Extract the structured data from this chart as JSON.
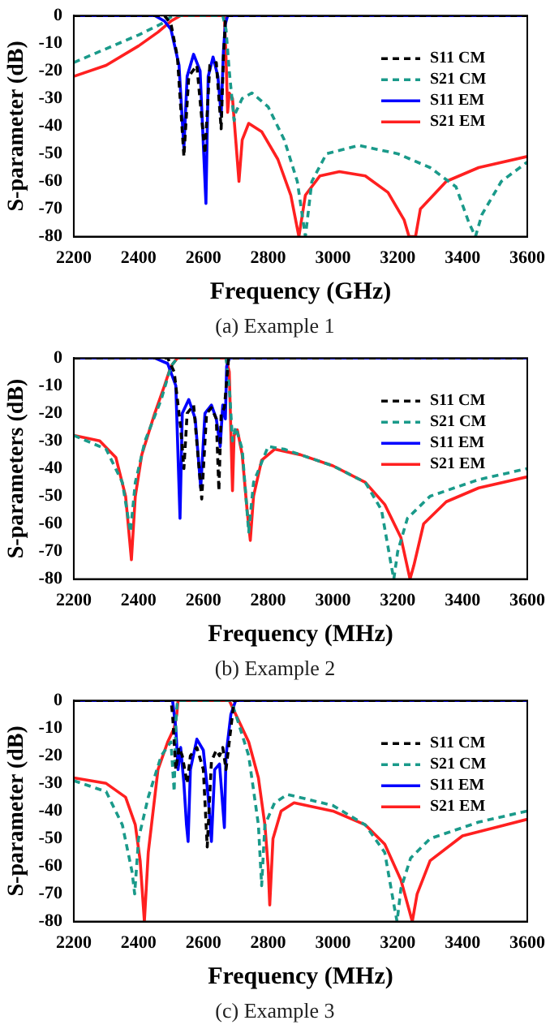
{
  "chart_data": [
    {
      "type": "line",
      "xlabel": "Frequency (GHz)",
      "ylabel": "S-parameter (dB)",
      "annotations": [
        "(a)  Example  1"
      ],
      "xlim": [
        2200,
        3600
      ],
      "ylim": [
        -80,
        0
      ],
      "xticks": [
        2200,
        2400,
        2600,
        2800,
        3000,
        3200,
        3400,
        3600
      ],
      "yticks": [
        -80,
        -70,
        -60,
        -50,
        -40,
        -30,
        -20,
        -10,
        0
      ],
      "legend": "top right",
      "grid": false,
      "marker": "none",
      "series": [
        {
          "name": "S11 CM",
          "color": "#000000",
          "line_style": "dashed",
          "x": [
            2200,
            2480,
            2500,
            2520,
            2540,
            2555,
            2580,
            2605,
            2620,
            2640,
            2655,
            2662,
            2668,
            2672,
            3600
          ],
          "values": [
            0,
            0,
            -3,
            -15,
            -51,
            -22,
            -18,
            -50,
            -18,
            -17,
            -41,
            -15,
            -2,
            0,
            0
          ]
        },
        {
          "name": "S21 CM",
          "color": "#1a9a8a",
          "line_style": "dashed",
          "x": [
            2200,
            2300,
            2400,
            2470,
            2500,
            2520,
            2660,
            2670,
            2680,
            2695,
            2700,
            2720,
            2750,
            2800,
            2850,
            2890,
            2915,
            2935,
            2980,
            3080,
            3200,
            3300,
            3380,
            3420,
            3440,
            3460,
            3520,
            3600
          ],
          "values": [
            -17,
            -12,
            -7,
            -3,
            -0.5,
            0,
            0,
            -5,
            -20,
            -38,
            -35,
            -30,
            -28,
            -33,
            -45,
            -60,
            -80,
            -60,
            -50,
            -47,
            -50,
            -55,
            -62,
            -75,
            -80,
            -72,
            -60,
            -53
          ]
        },
        {
          "name": "S11 EM",
          "color": "#0000ff",
          "line_style": "solid",
          "x": [
            2200,
            2450,
            2480,
            2500,
            2525,
            2540,
            2550,
            2570,
            2590,
            2608,
            2615,
            2630,
            2645,
            2655,
            2662,
            2668,
            2675,
            3600
          ],
          "values": [
            0,
            0,
            -2,
            -5,
            -18,
            -48,
            -22,
            -14,
            -20,
            -68,
            -22,
            -15,
            -22,
            -36,
            -13,
            -3,
            0,
            0
          ]
        },
        {
          "name": "S21 EM",
          "color": "#ff2020",
          "line_style": "solid",
          "x": [
            2200,
            2300,
            2400,
            2460,
            2500,
            2530,
            2665,
            2670,
            2675,
            2680,
            2690,
            2700,
            2710,
            2720,
            2740,
            2780,
            2830,
            2870,
            2895,
            2915,
            2960,
            3020,
            3100,
            3170,
            3220,
            3235,
            3255,
            3270,
            3350,
            3450,
            3600
          ],
          "values": [
            -22,
            -18,
            -11,
            -6,
            -2,
            0,
            0,
            -15,
            -35,
            -28,
            -30,
            -45,
            -60,
            -45,
            -39,
            -42,
            -52,
            -65,
            -80,
            -65,
            -58,
            -56.5,
            -58,
            -64,
            -74,
            -80,
            -80,
            -70,
            -60,
            -55,
            -51
          ]
        }
      ]
    },
    {
      "type": "line",
      "xlabel": "Frequency (MHz)",
      "ylabel": "S-parameters (dB)",
      "annotations": [
        "(b)  Example  2"
      ],
      "xlim": [
        2200,
        3600
      ],
      "ylim": [
        -80,
        0
      ],
      "xticks": [
        2200,
        2400,
        2600,
        2800,
        3000,
        3200,
        3400,
        3600
      ],
      "yticks": [
        -80,
        -70,
        -60,
        -50,
        -40,
        -30,
        -20,
        -10,
        0
      ],
      "legend": "top right",
      "grid": false,
      "marker": "none",
      "series": [
        {
          "name": "S11 CM",
          "color": "#000000",
          "line_style": "dashed",
          "x": [
            2200,
            2490,
            2510,
            2530,
            2540,
            2550,
            2570,
            2595,
            2610,
            2625,
            2640,
            2648,
            2655,
            2665,
            2672,
            2678,
            3600
          ],
          "values": [
            0,
            0,
            -5,
            -25,
            -40,
            -20,
            -17,
            -51,
            -20,
            -18,
            -22,
            -48,
            -20,
            -18,
            -8,
            0,
            0
          ]
        },
        {
          "name": "S21 CM",
          "color": "#1a9a8a",
          "line_style": "dashed",
          "x": [
            2200,
            2300,
            2350,
            2375,
            2390,
            2420,
            2470,
            2500,
            2520,
            2670,
            2680,
            2690,
            2700,
            2720,
            2740,
            2755,
            2800,
            2850,
            3000,
            3100,
            3150,
            3180,
            3188,
            3200,
            3230,
            3300,
            3450,
            3600
          ],
          "values": [
            -28,
            -33,
            -45,
            -63,
            -45,
            -30,
            -15,
            -3,
            0,
            0,
            -10,
            -30,
            -25,
            -33,
            -63,
            -45,
            -32,
            -33,
            -39,
            -45,
            -55,
            -75,
            -80,
            -70,
            -58,
            -50,
            -44,
            -40
          ]
        },
        {
          "name": "S11 EM",
          "color": "#0000ff",
          "line_style": "solid",
          "x": [
            2200,
            2450,
            2490,
            2515,
            2528,
            2535,
            2555,
            2575,
            2592,
            2605,
            2625,
            2640,
            2652,
            2660,
            2668,
            2672,
            2680,
            3600
          ],
          "values": [
            0,
            0,
            -2,
            -10,
            -58,
            -20,
            -15,
            -22,
            -47,
            -20,
            -17,
            -22,
            -32,
            -17,
            -22,
            -3,
            0,
            0
          ]
        },
        {
          "name": "S21 EM",
          "color": "#ff2020",
          "line_style": "solid",
          "x": [
            2200,
            2280,
            2330,
            2360,
            2378,
            2390,
            2410,
            2450,
            2480,
            2500,
            2520,
            2670,
            2680,
            2690,
            2695,
            2705,
            2720,
            2735,
            2745,
            2755,
            2780,
            2820,
            2900,
            3000,
            3100,
            3160,
            3210,
            3238,
            3250,
            3280,
            3350,
            3450,
            3600
          ],
          "values": [
            -28,
            -30,
            -36,
            -50,
            -73,
            -50,
            -35,
            -20,
            -10,
            -3,
            0,
            0,
            -5,
            -48,
            -28,
            -26,
            -35,
            -55,
            -66,
            -50,
            -37,
            -33,
            -35,
            -39,
            -45,
            -53,
            -65,
            -80,
            -75,
            -60,
            -52,
            -47,
            -43
          ]
        }
      ]
    },
    {
      "type": "line",
      "xlabel": "Frequency (MHz)",
      "ylabel": "S-parameter (dB)",
      "annotations": [
        "(c)  Example  3"
      ],
      "xlim": [
        2200,
        3600
      ],
      "ylim": [
        -80,
        0
      ],
      "xticks": [
        2200,
        2400,
        2600,
        2800,
        3000,
        3200,
        3400,
        3600
      ],
      "yticks": [
        -80,
        -70,
        -60,
        -50,
        -40,
        -30,
        -20,
        -10,
        0
      ],
      "legend": "top right",
      "grid": false,
      "marker": "none",
      "series": [
        {
          "name": "S11 CM",
          "color": "#000000",
          "line_style": "dashed",
          "x": [
            2200,
            2500,
            2505,
            2515,
            2525,
            2535,
            2550,
            2560,
            2580,
            2600,
            2612,
            2625,
            2640,
            2650,
            2660,
            2670,
            2685,
            2695,
            3600
          ],
          "values": [
            0,
            0,
            -5,
            -25,
            -17,
            -20,
            -30,
            -20,
            -17,
            -25,
            -53,
            -22,
            -18,
            -20,
            -17,
            -25,
            -10,
            0,
            0
          ]
        },
        {
          "name": "S21 CM",
          "color": "#1a9a8a",
          "line_style": "dashed",
          "x": [
            2200,
            2300,
            2350,
            2380,
            2388,
            2400,
            2430,
            2470,
            2500,
            2510,
            2515,
            2520,
            2685,
            2700,
            2740,
            2770,
            2780,
            2790,
            2820,
            2860,
            3000,
            3100,
            3160,
            3190,
            3198,
            3210,
            3240,
            3300,
            3450,
            3600
          ],
          "values": [
            -29,
            -33,
            -45,
            -62,
            -70,
            -50,
            -35,
            -20,
            -15,
            -33,
            -8,
            0,
            0,
            -5,
            -20,
            -45,
            -67,
            -45,
            -37,
            -34,
            -38,
            -45,
            -55,
            -75,
            -80,
            -68,
            -57,
            -50,
            -44,
            -40
          ]
        },
        {
          "name": "S11 EM",
          "color": "#0000ff",
          "line_style": "solid",
          "x": [
            2200,
            2505,
            2515,
            2522,
            2530,
            2540,
            2548,
            2553,
            2560,
            2580,
            2600,
            2615,
            2625,
            2635,
            2650,
            2665,
            2670,
            2685,
            2700,
            3600
          ],
          "values": [
            0,
            0,
            -10,
            -25,
            -17,
            -30,
            -45,
            -51,
            -25,
            -14,
            -18,
            -35,
            -51,
            -25,
            -23,
            -46,
            -20,
            -5,
            0,
            0
          ]
        },
        {
          "name": "S21 EM",
          "color": "#ff2020",
          "line_style": "solid",
          "x": [
            2200,
            2300,
            2360,
            2390,
            2405,
            2418,
            2430,
            2460,
            2490,
            2510,
            2518,
            2522,
            2680,
            2700,
            2740,
            2770,
            2790,
            2800,
            2805,
            2815,
            2840,
            2880,
            3000,
            3100,
            3160,
            3210,
            3245,
            3260,
            3300,
            3400,
            3600
          ],
          "values": [
            -28,
            -30,
            -35,
            -45,
            -58,
            -80,
            -55,
            -25,
            -15,
            -10,
            -5,
            0,
            0,
            -5,
            -15,
            -28,
            -45,
            -60,
            -74,
            -50,
            -40,
            -37,
            -40,
            -45,
            -52,
            -65,
            -80,
            -70,
            -58,
            -49,
            -43
          ]
        }
      ]
    }
  ]
}
